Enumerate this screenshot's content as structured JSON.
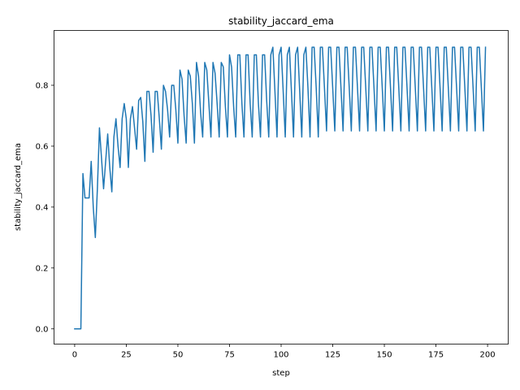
{
  "chart_data": {
    "type": "line",
    "title": "stability_jaccard_ema",
    "xlabel": "step",
    "ylabel": "stability_jaccard_ema",
    "xlim": [
      -10,
      210
    ],
    "ylim": [
      -0.05,
      0.98
    ],
    "x_ticks": [
      0,
      25,
      50,
      75,
      100,
      125,
      150,
      175,
      200
    ],
    "y_ticks": [
      0.0,
      0.2,
      0.4,
      0.6,
      0.8
    ],
    "x_tick_labels": [
      "0",
      "25",
      "50",
      "75",
      "100",
      "125",
      "150",
      "175",
      "200"
    ],
    "y_tick_labels": [
      "0.0",
      "0.2",
      "0.4",
      "0.6",
      "0.8"
    ],
    "grid": false,
    "legend": "none",
    "series": [
      {
        "color": "#1f77b4",
        "x": [
          0,
          1,
          2,
          3,
          4,
          5,
          6,
          7,
          8,
          9,
          10,
          11,
          12,
          13,
          14,
          15,
          16,
          17,
          18,
          19,
          20,
          21,
          22,
          23,
          24,
          25,
          26,
          27,
          28,
          29,
          30,
          31,
          32,
          33,
          34,
          35,
          36,
          37,
          38,
          39,
          40,
          41,
          42,
          43,
          44,
          45,
          46,
          47,
          48,
          49,
          50,
          51,
          52,
          53,
          54,
          55,
          56,
          57,
          58,
          59,
          60,
          61,
          62,
          63,
          64,
          65,
          66,
          67,
          68,
          69,
          70,
          71,
          72,
          73,
          74,
          75,
          76,
          77,
          78,
          79,
          80,
          81,
          82,
          83,
          84,
          85,
          86,
          87,
          88,
          89,
          90,
          91,
          92,
          93,
          94,
          95,
          96,
          97,
          98,
          99,
          100,
          101,
          102,
          103,
          104,
          105,
          106,
          107,
          108,
          109,
          110,
          111,
          112,
          113,
          114,
          115,
          116,
          117,
          118,
          119,
          120,
          121,
          122,
          123,
          124,
          125,
          126,
          127,
          128,
          129,
          130,
          131,
          132,
          133,
          134,
          135,
          136,
          137,
          138,
          139,
          140,
          141,
          142,
          143,
          144,
          145,
          146,
          147,
          148,
          149,
          150,
          151,
          152,
          153,
          154,
          155,
          156,
          157,
          158,
          159,
          160,
          161,
          162,
          163,
          164,
          165,
          166,
          167,
          168,
          169,
          170,
          171,
          172,
          173,
          174,
          175,
          176,
          177,
          178,
          179,
          180,
          181,
          182,
          183,
          184,
          185,
          186,
          187,
          188,
          189,
          190,
          191,
          192,
          193,
          194,
          195,
          196,
          197,
          198,
          199
        ],
        "y": [
          0.0,
          0.0,
          0.0,
          0.0,
          0.51,
          0.43,
          0.43,
          0.43,
          0.55,
          0.4,
          0.3,
          0.46,
          0.66,
          0.56,
          0.46,
          0.55,
          0.64,
          0.53,
          0.45,
          0.63,
          0.69,
          0.6,
          0.53,
          0.69,
          0.74,
          0.69,
          0.53,
          0.69,
          0.73,
          0.66,
          0.59,
          0.75,
          0.76,
          0.68,
          0.55,
          0.78,
          0.78,
          0.7,
          0.58,
          0.78,
          0.78,
          0.69,
          0.59,
          0.8,
          0.78,
          0.72,
          0.63,
          0.8,
          0.8,
          0.72,
          0.61,
          0.85,
          0.82,
          0.7,
          0.61,
          0.85,
          0.83,
          0.74,
          0.61,
          0.875,
          0.83,
          0.71,
          0.63,
          0.875,
          0.85,
          0.74,
          0.63,
          0.875,
          0.84,
          0.74,
          0.63,
          0.875,
          0.86,
          0.73,
          0.63,
          0.9,
          0.86,
          0.73,
          0.63,
          0.9,
          0.9,
          0.74,
          0.63,
          0.9,
          0.9,
          0.74,
          0.63,
          0.9,
          0.9,
          0.74,
          0.63,
          0.9,
          0.9,
          0.75,
          0.63,
          0.9,
          0.925,
          0.78,
          0.63,
          0.9,
          0.925,
          0.78,
          0.63,
          0.9,
          0.925,
          0.78,
          0.63,
          0.9,
          0.925,
          0.78,
          0.63,
          0.9,
          0.925,
          0.79,
          0.63,
          0.925,
          0.925,
          0.79,
          0.63,
          0.925,
          0.925,
          0.79,
          0.65,
          0.925,
          0.925,
          0.79,
          0.65,
          0.925,
          0.925,
          0.79,
          0.65,
          0.925,
          0.925,
          0.79,
          0.65,
          0.925,
          0.925,
          0.79,
          0.65,
          0.925,
          0.925,
          0.79,
          0.65,
          0.925,
          0.925,
          0.79,
          0.65,
          0.925,
          0.925,
          0.79,
          0.65,
          0.925,
          0.925,
          0.79,
          0.65,
          0.925,
          0.925,
          0.79,
          0.65,
          0.925,
          0.925,
          0.79,
          0.65,
          0.925,
          0.925,
          0.79,
          0.65,
          0.925,
          0.925,
          0.79,
          0.65,
          0.925,
          0.925,
          0.79,
          0.65,
          0.925,
          0.925,
          0.79,
          0.65,
          0.925,
          0.925,
          0.79,
          0.65,
          0.925,
          0.925,
          0.79,
          0.65,
          0.925,
          0.925,
          0.79,
          0.65,
          0.925,
          0.925,
          0.79,
          0.65,
          0.925,
          0.925,
          0.79,
          0.65,
          0.925
        ]
      }
    ]
  }
}
